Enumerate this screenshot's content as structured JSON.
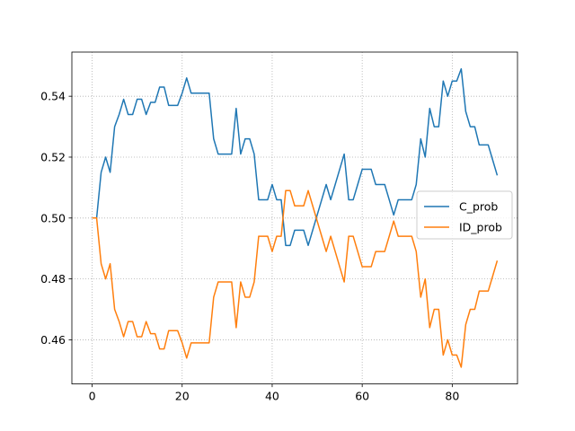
{
  "chart_data": {
    "type": "line",
    "title": "",
    "xlabel": "",
    "ylabel": "",
    "xlim": [
      -4.5,
      94.5
    ],
    "ylim": [
      0.4455,
      0.5545
    ],
    "xticks": [
      0,
      20,
      40,
      60,
      80
    ],
    "yticks": [
      0.46,
      0.48,
      0.5,
      0.52,
      0.54
    ],
    "ytick_labels": [
      "0.46",
      "0.48",
      "0.50",
      "0.52",
      "0.54"
    ],
    "grid": true,
    "legend_position": "center-right",
    "series": [
      {
        "name": "C_prob",
        "color": "#1f77b4",
        "values": [
          0.5,
          0.5,
          0.515,
          0.52,
          0.515,
          0.53,
          0.534,
          0.539,
          0.534,
          0.534,
          0.539,
          0.539,
          0.534,
          0.538,
          0.538,
          0.543,
          0.543,
          0.537,
          0.537,
          0.537,
          0.541,
          0.546,
          0.541,
          0.541,
          0.541,
          0.541,
          0.541,
          0.526,
          0.521,
          0.521,
          0.521,
          0.521,
          0.536,
          0.521,
          0.526,
          0.526,
          0.521,
          0.506,
          0.506,
          0.506,
          0.511,
          0.506,
          0.506,
          0.491,
          0.491,
          0.496,
          0.496,
          0.496,
          0.491,
          0.496,
          0.501,
          0.506,
          0.511,
          0.506,
          0.511,
          0.516,
          0.521,
          0.506,
          0.506,
          0.511,
          0.516,
          0.516,
          0.516,
          0.511,
          0.511,
          0.511,
          0.506,
          0.501,
          0.506,
          0.506,
          0.506,
          0.506,
          0.511,
          0.526,
          0.52,
          0.536,
          0.53,
          0.53,
          0.545,
          0.54,
          0.545,
          0.545,
          0.549,
          0.535,
          0.53,
          0.53,
          0.524,
          0.524,
          0.524,
          0.519,
          0.514
        ]
      },
      {
        "name": "ID_prob",
        "color": "#ff7f0e",
        "values": [
          0.5,
          0.5,
          0.485,
          0.48,
          0.485,
          0.47,
          0.466,
          0.461,
          0.466,
          0.466,
          0.461,
          0.461,
          0.466,
          0.462,
          0.462,
          0.457,
          0.457,
          0.463,
          0.463,
          0.463,
          0.459,
          0.454,
          0.459,
          0.459,
          0.459,
          0.459,
          0.459,
          0.474,
          0.479,
          0.479,
          0.479,
          0.479,
          0.464,
          0.479,
          0.474,
          0.474,
          0.479,
          0.494,
          0.494,
          0.494,
          0.489,
          0.494,
          0.494,
          0.509,
          0.509,
          0.504,
          0.504,
          0.504,
          0.509,
          0.504,
          0.499,
          0.494,
          0.489,
          0.494,
          0.489,
          0.484,
          0.479,
          0.494,
          0.494,
          0.489,
          0.484,
          0.484,
          0.484,
          0.489,
          0.489,
          0.489,
          0.494,
          0.499,
          0.494,
          0.494,
          0.494,
          0.494,
          0.489,
          0.474,
          0.48,
          0.464,
          0.47,
          0.47,
          0.455,
          0.46,
          0.455,
          0.455,
          0.451,
          0.465,
          0.47,
          0.47,
          0.476,
          0.476,
          0.476,
          0.481,
          0.486
        ]
      }
    ]
  }
}
